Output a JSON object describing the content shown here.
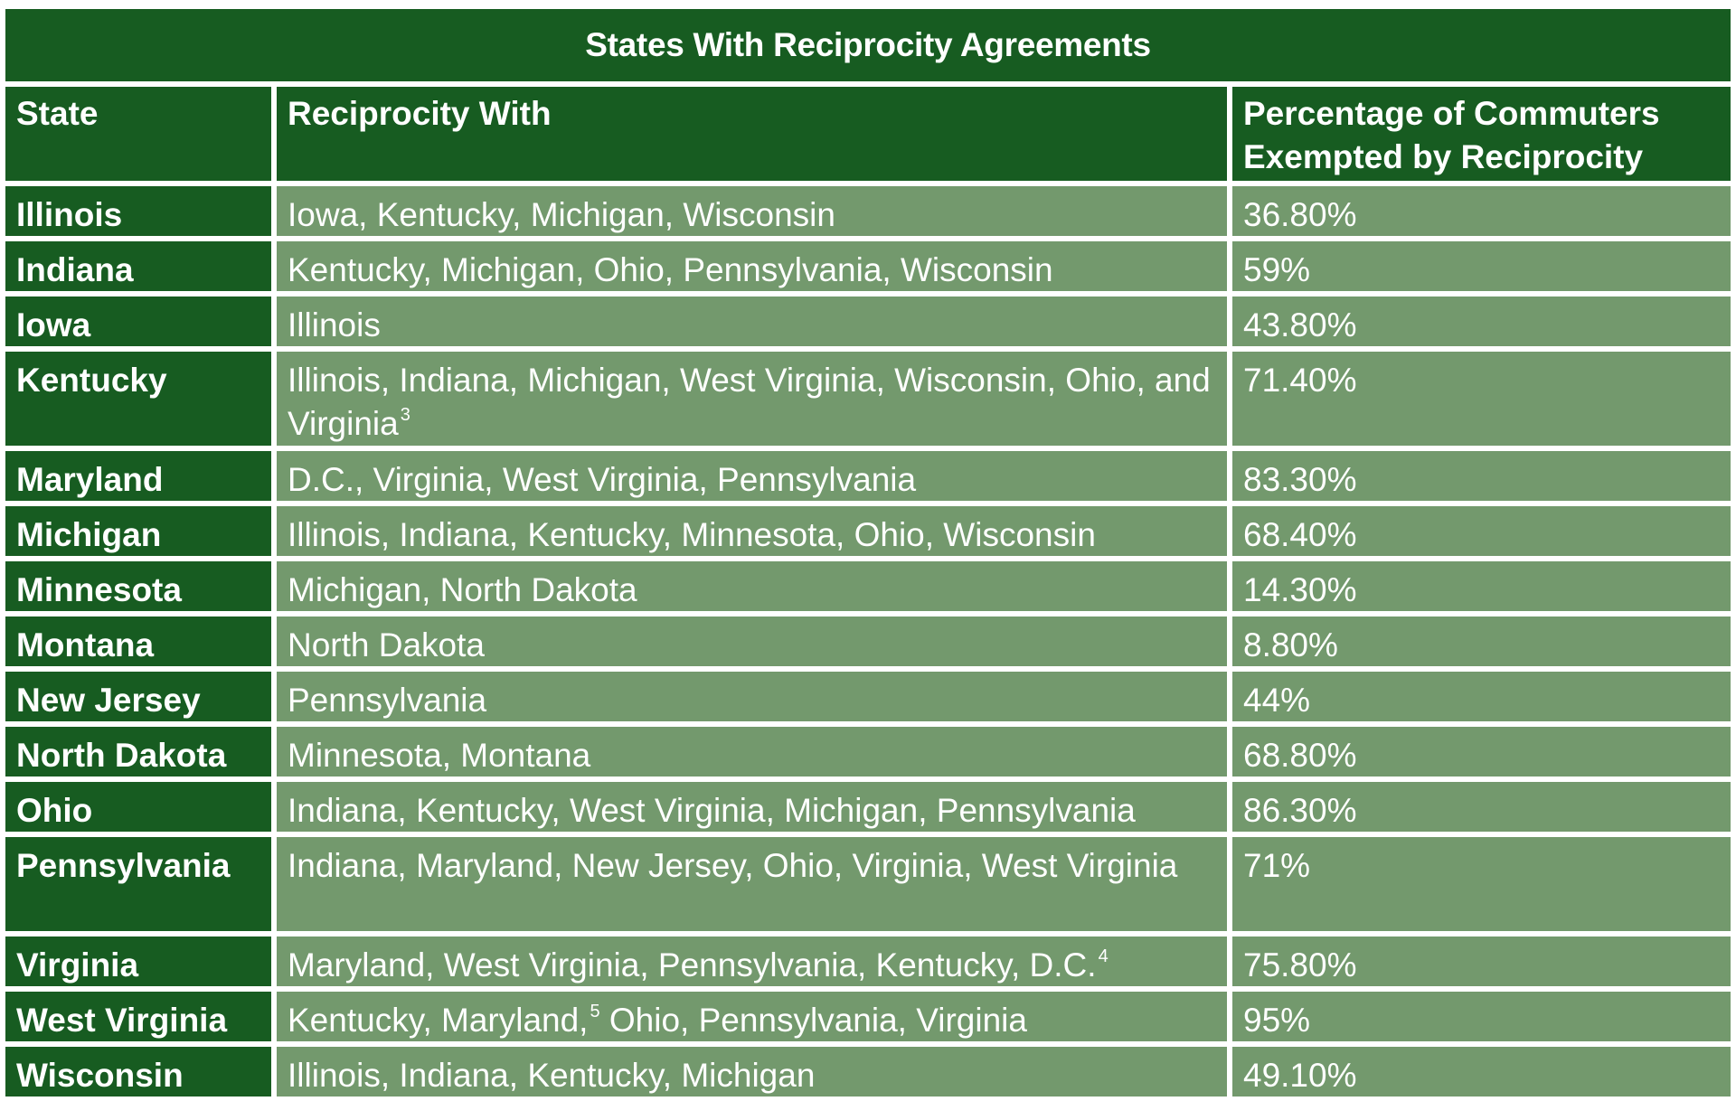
{
  "title": "States With Reciprocity Agreements",
  "headers": {
    "state": "State",
    "reciprocity": "Reciprocity With",
    "percentage_line1": "Percentage of Commuters",
    "percentage_line2": "Exempted by Reciprocity"
  },
  "rows": [
    {
      "state": "Illinois",
      "with": "Iowa, Kentucky, Michigan, Wisconsin",
      "sup": "",
      "with_after": "",
      "pct": "36.80%"
    },
    {
      "state": "Indiana",
      "with": "Kentucky, Michigan, Ohio, Pennsylvania, Wisconsin",
      "sup": "",
      "with_after": "",
      "pct": "59%"
    },
    {
      "state": "Iowa",
      "with": "Illinois",
      "sup": "",
      "with_after": "",
      "pct": "43.80%"
    },
    {
      "state": "Kentucky",
      "with": "Illinois, Indiana, Michigan, West Virginia, Wisconsin, Ohio, and Virginia",
      "sup": "3",
      "with_after": "",
      "pct": "71.40%"
    },
    {
      "state": "Maryland",
      "with": "D.C., Virginia, West Virginia, Pennsylvania",
      "sup": "",
      "with_after": "",
      "pct": "83.30%"
    },
    {
      "state": "Michigan",
      "with": "Illinois, Indiana, Kentucky, Minnesota, Ohio, Wisconsin",
      "sup": "",
      "with_after": "",
      "pct": "68.40%"
    },
    {
      "state": "Minnesota",
      "with": "Michigan, North Dakota",
      "sup": "",
      "with_after": "",
      "pct": "14.30%"
    },
    {
      "state": "Montana",
      "with": "North Dakota",
      "sup": "",
      "with_after": "",
      "pct": "8.80%"
    },
    {
      "state": "New Jersey",
      "with": "Pennsylvania",
      "sup": "",
      "with_after": "",
      "pct": "44%"
    },
    {
      "state": "North Dakota",
      "with": "Minnesota, Montana",
      "sup": "",
      "with_after": "",
      "pct": "68.80%"
    },
    {
      "state": "Ohio",
      "with": "Indiana, Kentucky, West Virginia, Michigan, Pennsylvania",
      "sup": "",
      "with_after": "",
      "pct": "86.30%"
    },
    {
      "state": "Pennsylvania",
      "with": "Indiana, Maryland, New Jersey, Ohio, Virginia, West Virginia",
      "sup": "",
      "with_after": "",
      "pct": "71%"
    },
    {
      "state": "Virginia",
      "with": "Maryland, West Virginia, Pennsylvania, Kentucky, D.C.",
      "sup": "4",
      "with_after": "",
      "pct": "75.80%"
    },
    {
      "state": "West Virginia",
      "with": "Kentucky, Maryland,",
      "sup": "5",
      "with_after": " Ohio, Pennsylvania, Virginia",
      "pct": "95%"
    },
    {
      "state": "Wisconsin",
      "with": "Illinois, Indiana, Kentucky, Michigan",
      "sup": "",
      "with_after": "",
      "pct": "49.10%"
    }
  ]
}
